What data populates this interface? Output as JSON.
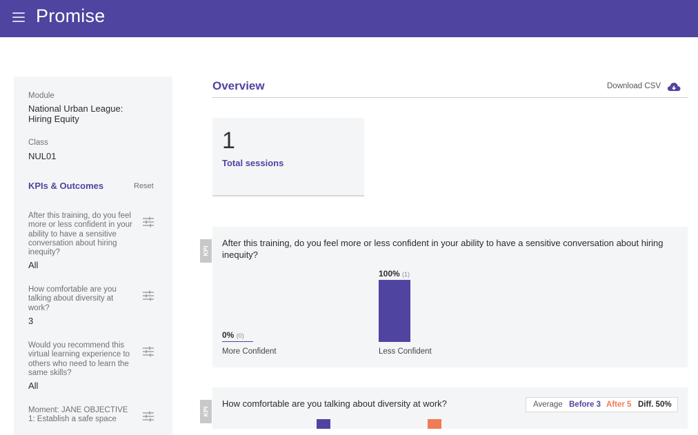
{
  "app": {
    "title": "Promise"
  },
  "sidebar": {
    "module_label": "Module",
    "module_value": "National Urban League: Hiring Equity",
    "class_label": "Class",
    "class_value": "NUL01",
    "kpi_title": "KPIs & Outcomes",
    "reset_label": "Reset",
    "filters": [
      {
        "question": "After this training, do you feel more or less confident in your ability to have a sensitive conversation about hiring inequity?",
        "value": "All"
      },
      {
        "question": "How comfortable are you talking about diversity at work?",
        "value": "3"
      },
      {
        "question": "Would you recommend this virtual learning experience to others who need to learn the same skills?",
        "value": "All"
      },
      {
        "question": "Moment: JANE OBJECTIVE 1: Establish a safe space",
        "value": ""
      }
    ]
  },
  "main": {
    "title": "Overview",
    "download_label": "Download CSV",
    "stat": {
      "value": "1",
      "label": "Total sessions"
    },
    "kpi_tag": "KPI",
    "kpi1": {
      "question": "After this training, do you feel more or less confident in your ability to have a sensitive conversation about hiring inequity?",
      "bars": [
        {
          "category": "More Confident",
          "percent": "0%",
          "count": "(0)",
          "value": 0
        },
        {
          "category": "Less Confident",
          "percent": "100%",
          "count": "(1)",
          "value": 100
        }
      ]
    },
    "kpi2": {
      "question": "How comfortable are you talking about diversity at work?",
      "average_label": "Average",
      "before_label": "Before 3",
      "after_label": "After 5",
      "diff_label": "Diff. 50%"
    }
  },
  "colors": {
    "brand": "#4f44a0",
    "after": "#f07b57",
    "card": "#f4f5f7"
  }
}
